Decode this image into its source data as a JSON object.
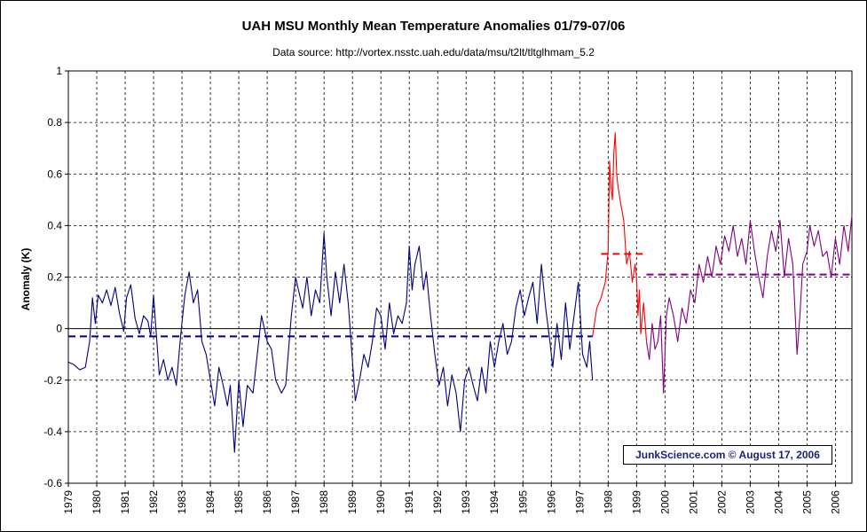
{
  "chart_data": {
    "type": "line",
    "title": "UAH MSU Monthly Mean Temperature Anomalies 01/79-07/06",
    "subtitle": "Data source: http://vortex.nsstc.uah.edu/data/msu/t2lt/tltglhmam_5.2",
    "ylabel": "Anomaly (K)",
    "xlabel": "",
    "ylim": [
      -0.6,
      1.0
    ],
    "yticks": [
      "1",
      "0.8",
      "0.6",
      "0.4",
      "0.2",
      "0",
      "-0.2",
      "-0.4",
      "-0.6"
    ],
    "yticks_values": [
      1,
      0.8,
      0.6,
      0.4,
      0.2,
      0,
      -0.2,
      -0.4,
      -0.6
    ],
    "xlim": [
      1979,
      2006.58
    ],
    "xticks": [
      "1979",
      "1980",
      "1981",
      "1982",
      "1983",
      "1984",
      "1985",
      "1986",
      "1987",
      "1988",
      "1989",
      "1990",
      "1991",
      "1992",
      "1993",
      "1994",
      "1995",
      "1996",
      "1997",
      "1998",
      "1999",
      "2000",
      "2001",
      "2002",
      "2003",
      "2004",
      "2005",
      "2006"
    ],
    "grid": true,
    "series": [
      {
        "color": "#000080",
        "x": [
          1979.0,
          1979.2,
          1979.4,
          1979.6,
          1979.75,
          1979.85,
          1979.95,
          1980.05,
          1980.2,
          1980.35,
          1980.5,
          1980.65,
          1980.8,
          1980.95,
          1981.05,
          1981.2,
          1981.35,
          1981.5,
          1981.65,
          1981.8,
          1981.9,
          1982.0,
          1982.2,
          1982.35,
          1982.5,
          1982.65,
          1982.8,
          1982.95,
          1983.1,
          1983.25,
          1983.4,
          1983.55,
          1983.7,
          1983.85,
          1984.0,
          1984.15,
          1984.3,
          1984.45,
          1984.6,
          1984.7,
          1984.85,
          1985.0,
          1985.15,
          1985.3,
          1985.5,
          1985.65,
          1985.8,
          1986.0,
          1986.15,
          1986.3,
          1986.5,
          1986.65,
          1986.85,
          1987.0,
          1987.1,
          1987.25,
          1987.4,
          1987.55,
          1987.7,
          1987.85,
          1988.0,
          1988.1,
          1988.25,
          1988.4,
          1988.55,
          1988.7,
          1988.85,
          1988.95,
          1989.1,
          1989.25,
          1989.4,
          1989.55,
          1989.7,
          1989.85,
          1990.0,
          1990.15,
          1990.3,
          1990.45,
          1990.6,
          1990.75,
          1990.9,
          1991.0,
          1991.1,
          1991.2,
          1991.35,
          1991.5,
          1991.6,
          1991.75,
          1991.9,
          1992.05,
          1992.2,
          1992.35,
          1992.5,
          1992.65,
          1992.8,
          1992.95,
          1993.1,
          1993.25,
          1993.4,
          1993.55,
          1993.7,
          1993.85,
          1994.0,
          1994.15,
          1994.3,
          1994.45,
          1994.6,
          1994.75,
          1994.9,
          1995.05,
          1995.2,
          1995.35,
          1995.5,
          1995.65,
          1995.8,
          1995.95,
          1996.05,
          1996.2,
          1996.35,
          1996.5,
          1996.65,
          1996.8,
          1996.95,
          1997.1,
          1997.25,
          1997.35,
          1997.45
        ],
        "y": [
          -0.13,
          -0.14,
          -0.16,
          -0.15,
          -0.05,
          0.12,
          0.02,
          0.13,
          0.1,
          0.15,
          0.09,
          0.16,
          0.06,
          -0.01,
          0.12,
          0.17,
          0.04,
          -0.02,
          0.05,
          0.03,
          -0.03,
          0.13,
          -0.18,
          -0.12,
          -0.2,
          -0.15,
          -0.22,
          -0.03,
          0.13,
          0.22,
          0.1,
          0.15,
          -0.05,
          -0.1,
          -0.2,
          -0.3,
          -0.15,
          -0.22,
          -0.3,
          -0.22,
          -0.48,
          -0.2,
          -0.38,
          -0.22,
          -0.25,
          -0.1,
          0.05,
          -0.05,
          -0.08,
          -0.2,
          -0.25,
          -0.22,
          0.05,
          0.2,
          0.15,
          0.08,
          0.2,
          0.05,
          0.15,
          0.1,
          0.37,
          0.2,
          0.05,
          0.22,
          0.1,
          0.25,
          0.1,
          -0.05,
          -0.28,
          -0.2,
          -0.1,
          -0.15,
          -0.05,
          0.08,
          0.05,
          -0.08,
          0.1,
          -0.02,
          0.05,
          0.02,
          0.1,
          0.32,
          0.15,
          0.25,
          0.32,
          0.15,
          0.22,
          0.05,
          -0.1,
          -0.22,
          -0.15,
          -0.3,
          -0.18,
          -0.25,
          -0.4,
          -0.2,
          -0.15,
          -0.22,
          -0.28,
          -0.15,
          -0.25,
          -0.05,
          -0.15,
          -0.05,
          0.02,
          -0.1,
          -0.05,
          0.08,
          0.15,
          0.05,
          0.12,
          0.18,
          0.02,
          0.25,
          0.08,
          -0.05,
          -0.15,
          0.02,
          -0.12,
          0.1,
          -0.08,
          0.05,
          0.18,
          -0.1,
          -0.15,
          -0.05,
          -0.2
        ]
      },
      {
        "color": "#ff0000",
        "x": [
          1997.45,
          1997.6,
          1997.75,
          1997.9,
          1998.0,
          1998.05,
          1998.1,
          1998.15,
          1998.2,
          1998.25,
          1998.3,
          1998.35,
          1998.45,
          1998.55,
          1998.65,
          1998.75,
          1998.85,
          1998.95,
          1999.0,
          1999.05,
          1999.1,
          1999.15,
          1999.25,
          1999.35
        ],
        "y": [
          -0.03,
          0.08,
          0.12,
          0.18,
          0.3,
          0.65,
          0.55,
          0.5,
          0.68,
          0.76,
          0.6,
          0.55,
          0.48,
          0.42,
          0.25,
          0.3,
          0.18,
          0.25,
          0.2,
          0.05,
          0.15,
          -0.02,
          0.1,
          -0.05
        ]
      },
      {
        "color": "#800080",
        "x": [
          1999.35,
          1999.45,
          1999.55,
          1999.65,
          1999.75,
          1999.85,
          1999.95,
          2000.05,
          2000.15,
          2000.3,
          2000.45,
          2000.6,
          2000.75,
          2000.9,
          2001.05,
          2001.2,
          2001.35,
          2001.5,
          2001.65,
          2001.8,
          2001.95,
          2002.1,
          2002.25,
          2002.4,
          2002.55,
          2002.7,
          2002.85,
          2003.0,
          2003.15,
          2003.3,
          2003.45,
          2003.6,
          2003.75,
          2003.9,
          2004.05,
          2004.2,
          2004.35,
          2004.5,
          2004.65,
          2004.75,
          2004.85,
          2005.0,
          2005.1,
          2005.25,
          2005.4,
          2005.55,
          2005.7,
          2005.85,
          2006.0,
          2006.15,
          2006.3,
          2006.45,
          2006.58
        ],
        "y": [
          -0.05,
          -0.12,
          0.02,
          -0.08,
          -0.05,
          0.05,
          -0.25,
          0.05,
          0.12,
          0.05,
          -0.05,
          0.08,
          0.02,
          0.15,
          0.1,
          0.25,
          0.18,
          0.28,
          0.2,
          0.32,
          0.25,
          0.36,
          0.3,
          0.4,
          0.28,
          0.35,
          0.25,
          0.42,
          0.3,
          0.2,
          0.12,
          0.28,
          0.38,
          0.3,
          0.42,
          0.2,
          0.35,
          0.25,
          -0.1,
          0.05,
          0.25,
          0.3,
          0.4,
          0.32,
          0.38,
          0.28,
          0.3,
          0.2,
          0.35,
          0.25,
          0.4,
          0.3,
          0.44
        ]
      }
    ],
    "mean_lines": [
      {
        "color": "#000080",
        "x0": 1979.0,
        "x1": 1997.45,
        "y": -0.03
      },
      {
        "color": "#ff0000",
        "x0": 1997.75,
        "x1": 1999.35,
        "y": 0.29
      },
      {
        "color": "#800080",
        "x0": 1999.35,
        "x1": 2006.58,
        "y": 0.21
      }
    ],
    "annotation": "JunkScience.com © August 17, 2006"
  }
}
